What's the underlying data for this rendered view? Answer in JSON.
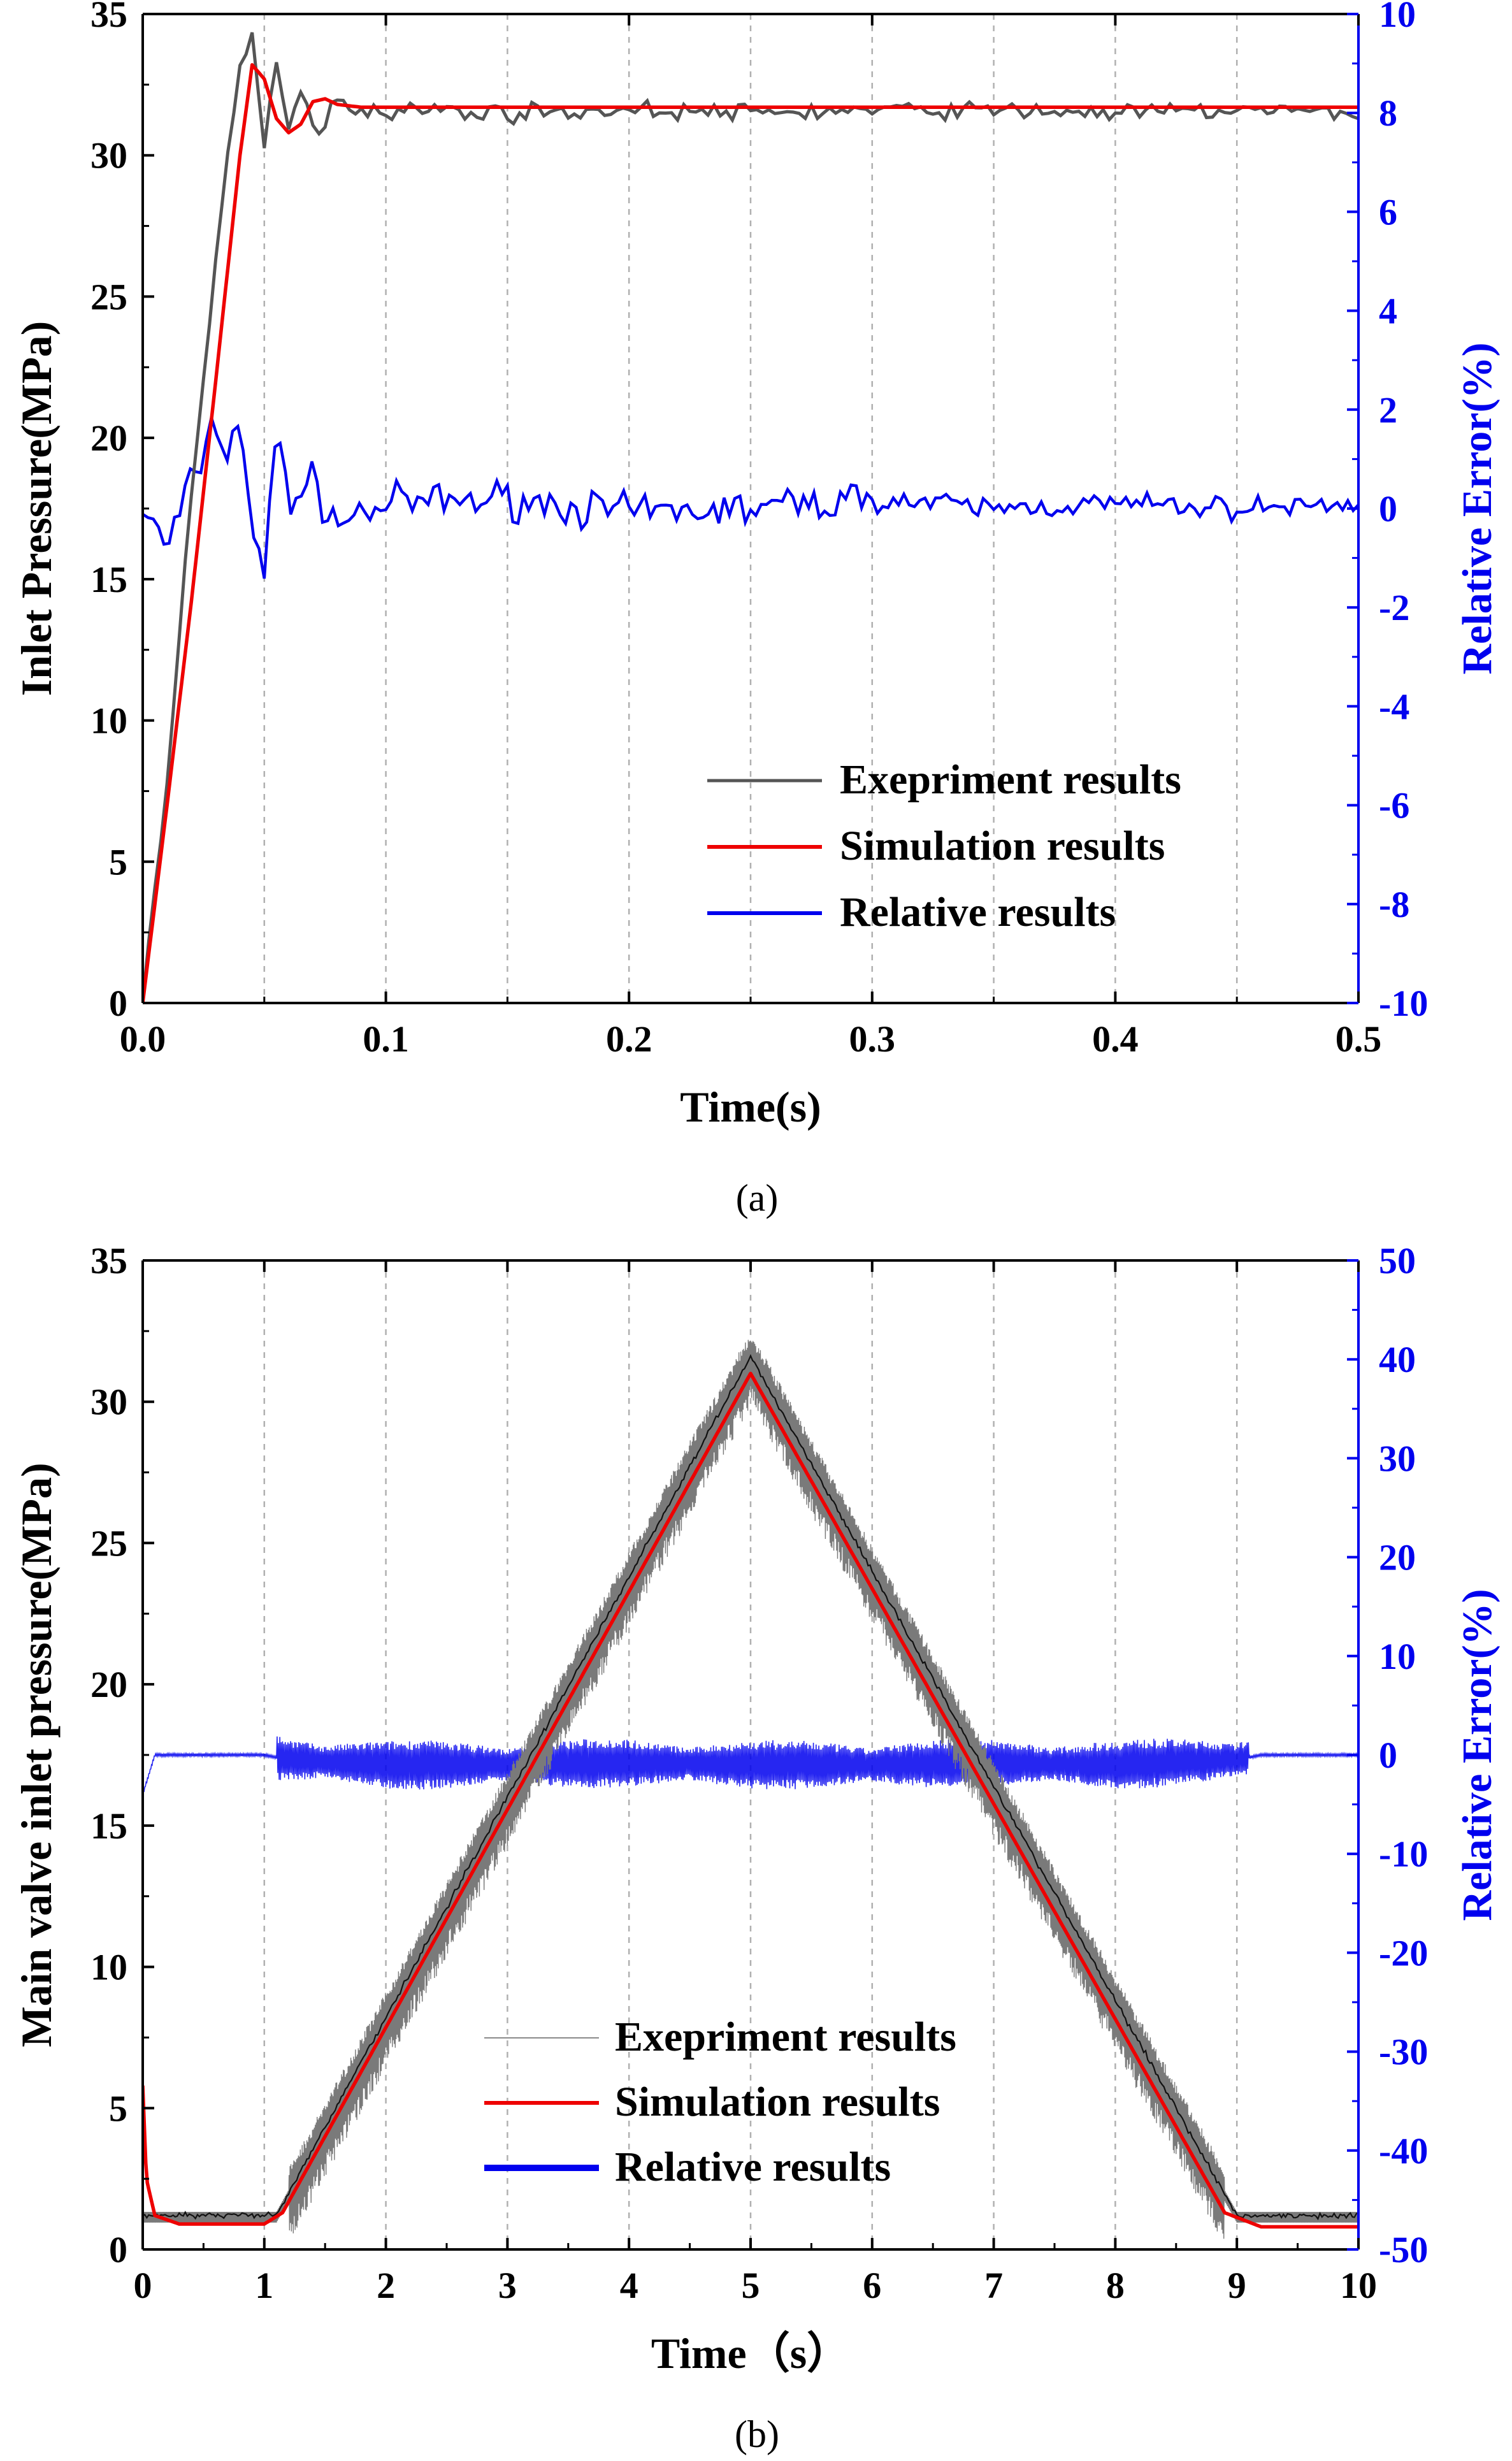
{
  "chart_data": [
    {
      "type": "line",
      "caption": "(a)",
      "xlabel": "Time(s)",
      "ylabel": "Inlet Pressure(MPa)",
      "y2label": "Relative Error(%)",
      "xlim": [
        0,
        0.5
      ],
      "ylim": [
        0,
        35
      ],
      "y2lim": [
        -10,
        10
      ],
      "x_ticks": [
        "0.0",
        "0.1",
        "0.2",
        "0.3",
        "0.4",
        "0.5"
      ],
      "y_ticks": [
        "0",
        "5",
        "10",
        "15",
        "20",
        "25",
        "30",
        "35"
      ],
      "y2_ticks": [
        "-10",
        "-8",
        "-6",
        "-4",
        "-2",
        "0",
        "2",
        "4",
        "6",
        "8",
        "10"
      ],
      "grid_x": [
        0.05,
        0.1,
        0.15,
        0.2,
        0.25,
        0.3,
        0.35,
        0.4,
        0.45
      ],
      "legend": [
        "Exepriment results",
        "Simulation results",
        "Relative results"
      ],
      "colors": {
        "experiment": "#555555",
        "simulation": "#ee0000",
        "relative": "#0000ee",
        "right_axis": "#0000ee"
      },
      "series": [
        {
          "name": "Exepriment results",
          "axis": "left",
          "x": [
            0,
            0.01,
            0.02,
            0.03,
            0.035,
            0.04,
            0.045,
            0.05,
            0.055,
            0.06,
            0.065,
            0.07,
            0.075,
            0.08,
            0.09,
            0.1,
            0.12,
            0.15,
            0.2,
            0.25,
            0.3,
            0.35,
            0.4,
            0.45,
            0.5
          ],
          "y": [
            0,
            8,
            18,
            26,
            30,
            33,
            34.3,
            30.2,
            33.2,
            31.2,
            32.5,
            31.0,
            31.2,
            32.1,
            31.6,
            31.6,
            31.6,
            31.5,
            31.6,
            31.5,
            31.6,
            31.6,
            31.5,
            31.6,
            31.5
          ]
        },
        {
          "name": "Simulation results",
          "axis": "left",
          "x": [
            0,
            0.01,
            0.02,
            0.03,
            0.04,
            0.045,
            0.05,
            0.055,
            0.06,
            0.065,
            0.07,
            0.075,
            0.08,
            0.09,
            0.1,
            0.2,
            0.3,
            0.4,
            0.5
          ],
          "y": [
            0,
            7,
            14.2,
            22,
            30,
            33.2,
            32.7,
            31.3,
            30.8,
            31.1,
            31.9,
            32.0,
            31.8,
            31.7,
            31.7,
            31.7,
            31.7,
            31.7,
            31.7
          ]
        },
        {
          "name": "Relative results",
          "axis": "right",
          "x": [
            0,
            0.01,
            0.02,
            0.03,
            0.035,
            0.04,
            0.045,
            0.05,
            0.055,
            0.06,
            0.07,
            0.08,
            0.1,
            0.15,
            0.2,
            0.25,
            0.3,
            0.35,
            0.4,
            0.45,
            0.5
          ],
          "y": [
            0,
            -0.8,
            0.5,
            1.8,
            1.0,
            2.0,
            -0.5,
            -1.5,
            1.8,
            0.2,
            0.5,
            -0.3,
            0.1,
            0.2,
            -0.1,
            0.0,
            0.2,
            0.0,
            0.1,
            0.0,
            0.1
          ]
        }
      ]
    },
    {
      "type": "line",
      "caption": "(b)",
      "xlabel": "Time（s）",
      "ylabel": "Main valve inlet pressure(MPa)",
      "y2label": "Relative Error(%)",
      "xlim": [
        0,
        10
      ],
      "ylim": [
        0,
        35
      ],
      "y2lim": [
        -50,
        50
      ],
      "x_ticks": [
        "0",
        "1",
        "2",
        "3",
        "4",
        "5",
        "6",
        "7",
        "8",
        "9",
        "10"
      ],
      "y_ticks": [
        "0",
        "5",
        "10",
        "15",
        "20",
        "25",
        "30",
        "35"
      ],
      "y2_ticks": [
        "-50",
        "-40",
        "-30",
        "-20",
        "-10",
        "0",
        "10",
        "20",
        "30",
        "40",
        "50"
      ],
      "grid_x": [
        1,
        2,
        3,
        4,
        5,
        6,
        7,
        8,
        9
      ],
      "legend": [
        "Exepriment results",
        "Simulation results",
        "Relative results"
      ],
      "colors": {
        "experiment": "#555555",
        "simulation": "#ee0000",
        "relative": "#0000ee",
        "right_axis": "#0000ee"
      },
      "series": [
        {
          "name": "Exepriment results",
          "axis": "left",
          "x": [
            0,
            1.1,
            5,
            9,
            10
          ],
          "y": [
            1.2,
            1.2,
            31.6,
            1.2,
            1.2
          ]
        },
        {
          "name": "Simulation results",
          "axis": "left",
          "x": [
            0,
            0.03,
            0.1,
            0.3,
            1.0,
            1.15,
            5,
            8.9,
            9.2,
            10
          ],
          "y": [
            5.8,
            2.5,
            1.2,
            0.9,
            0.9,
            1.3,
            31.0,
            1.3,
            0.8,
            0.8
          ]
        },
        {
          "name": "Relative results",
          "axis": "right",
          "x": [
            0,
            0.1,
            1,
            1.2,
            2,
            3,
            4,
            5,
            6,
            7,
            8,
            9,
            9.2,
            10
          ],
          "y": [
            -4,
            0,
            0,
            -0.5,
            -1,
            -1,
            -0.8,
            -1,
            -1,
            -0.8,
            -1,
            -0.5,
            0,
            0
          ]
        }
      ]
    }
  ]
}
